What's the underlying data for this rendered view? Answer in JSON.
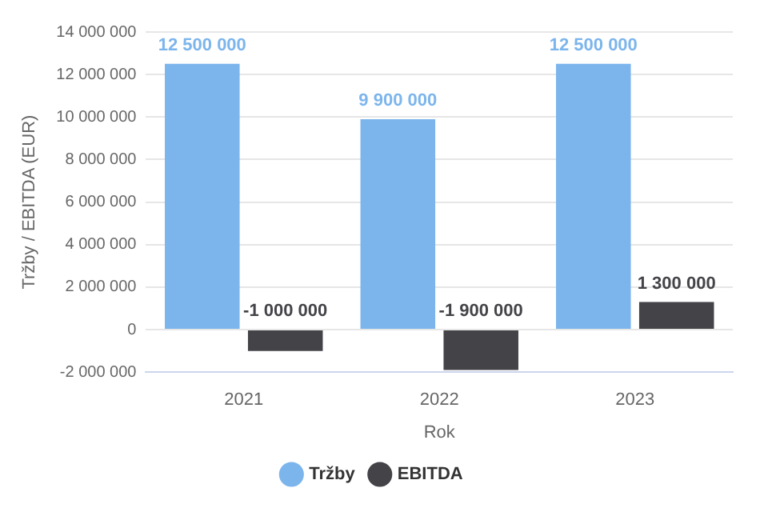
{
  "chart_data": {
    "type": "bar",
    "xlabel": "Rok",
    "ylabel": "Tržby / EBITDA (EUR)",
    "categories": [
      "2021",
      "2022",
      "2023"
    ],
    "series": [
      {
        "name": "Tržby",
        "color": "#7cb5ec",
        "values": [
          12500000,
          9900000,
          12500000
        ],
        "value_labels": [
          "12 500 000",
          "9 900 000",
          "12 500 000"
        ]
      },
      {
        "name": "EBITDA",
        "color": "#434348",
        "values": [
          -1000000,
          -1900000,
          1300000
        ],
        "value_labels": [
          "-1 000 000",
          "-1 900 000",
          "1 300 000"
        ]
      }
    ],
    "ylim": [
      -2000000,
      14000000
    ],
    "yticks": [
      {
        "value": -2000000,
        "label": "-2 000 000"
      },
      {
        "value": 0,
        "label": "0"
      },
      {
        "value": 2000000,
        "label": "2 000 000"
      },
      {
        "value": 4000000,
        "label": "4 000 000"
      },
      {
        "value": 6000000,
        "label": "6 000 000"
      },
      {
        "value": 8000000,
        "label": "8 000 000"
      },
      {
        "value": 10000000,
        "label": "10 000 000"
      },
      {
        "value": 12000000,
        "label": "12 000 000"
      },
      {
        "value": 14000000,
        "label": "14 000 000"
      }
    ],
    "grid": "y",
    "legend": "bottom",
    "marker": "circle"
  }
}
